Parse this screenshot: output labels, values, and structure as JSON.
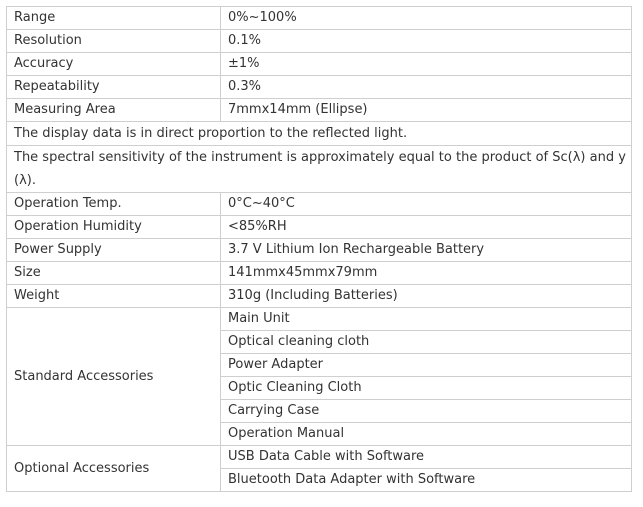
{
  "specs": [
    {
      "label": "Range",
      "value": "0%~100%"
    },
    {
      "label": "Resolution",
      "value": "0.1%"
    },
    {
      "label": "Accuracy",
      "value": "±1%"
    },
    {
      "label": "Repeatability",
      "value": "0.3%"
    },
    {
      "label": "Measuring Area",
      "value": "7mmx14mm (Ellipse)"
    }
  ],
  "notes": [
    "The display data is in direct proportion to the reflected light.",
    "The spectral sensitivity of the instrument is approximately equal to the product of Sc(λ) and y (λ)."
  ],
  "specs2": [
    {
      "label": "Operation Temp.",
      "value": "0°C~40°C"
    },
    {
      "label": "Operation Humidity",
      "value": "<85%RH"
    },
    {
      "label": "Power Supply",
      "value": "3.7 V Lithium Ion Rechargeable Battery"
    },
    {
      "label": "Size",
      "value": "141mmx45mmx79mm"
    },
    {
      "label": "Weight",
      "value": "310g (Including Batteries)"
    }
  ],
  "standard_accessories": {
    "label": "Standard Accessories",
    "items": [
      "Main Unit",
      "Optical cleaning cloth",
      "Power Adapter",
      "Optic Cleaning Cloth",
      "Carrying Case",
      "Operation Manual"
    ]
  },
  "optional_accessories": {
    "label": "Optional Accessories",
    "items": [
      "USB Data Cable with Software",
      "Bluetooth Data Adapter with Software"
    ]
  },
  "colors": {
    "border": "#cfcfcf",
    "text": "#333333",
    "background": "#ffffff"
  }
}
